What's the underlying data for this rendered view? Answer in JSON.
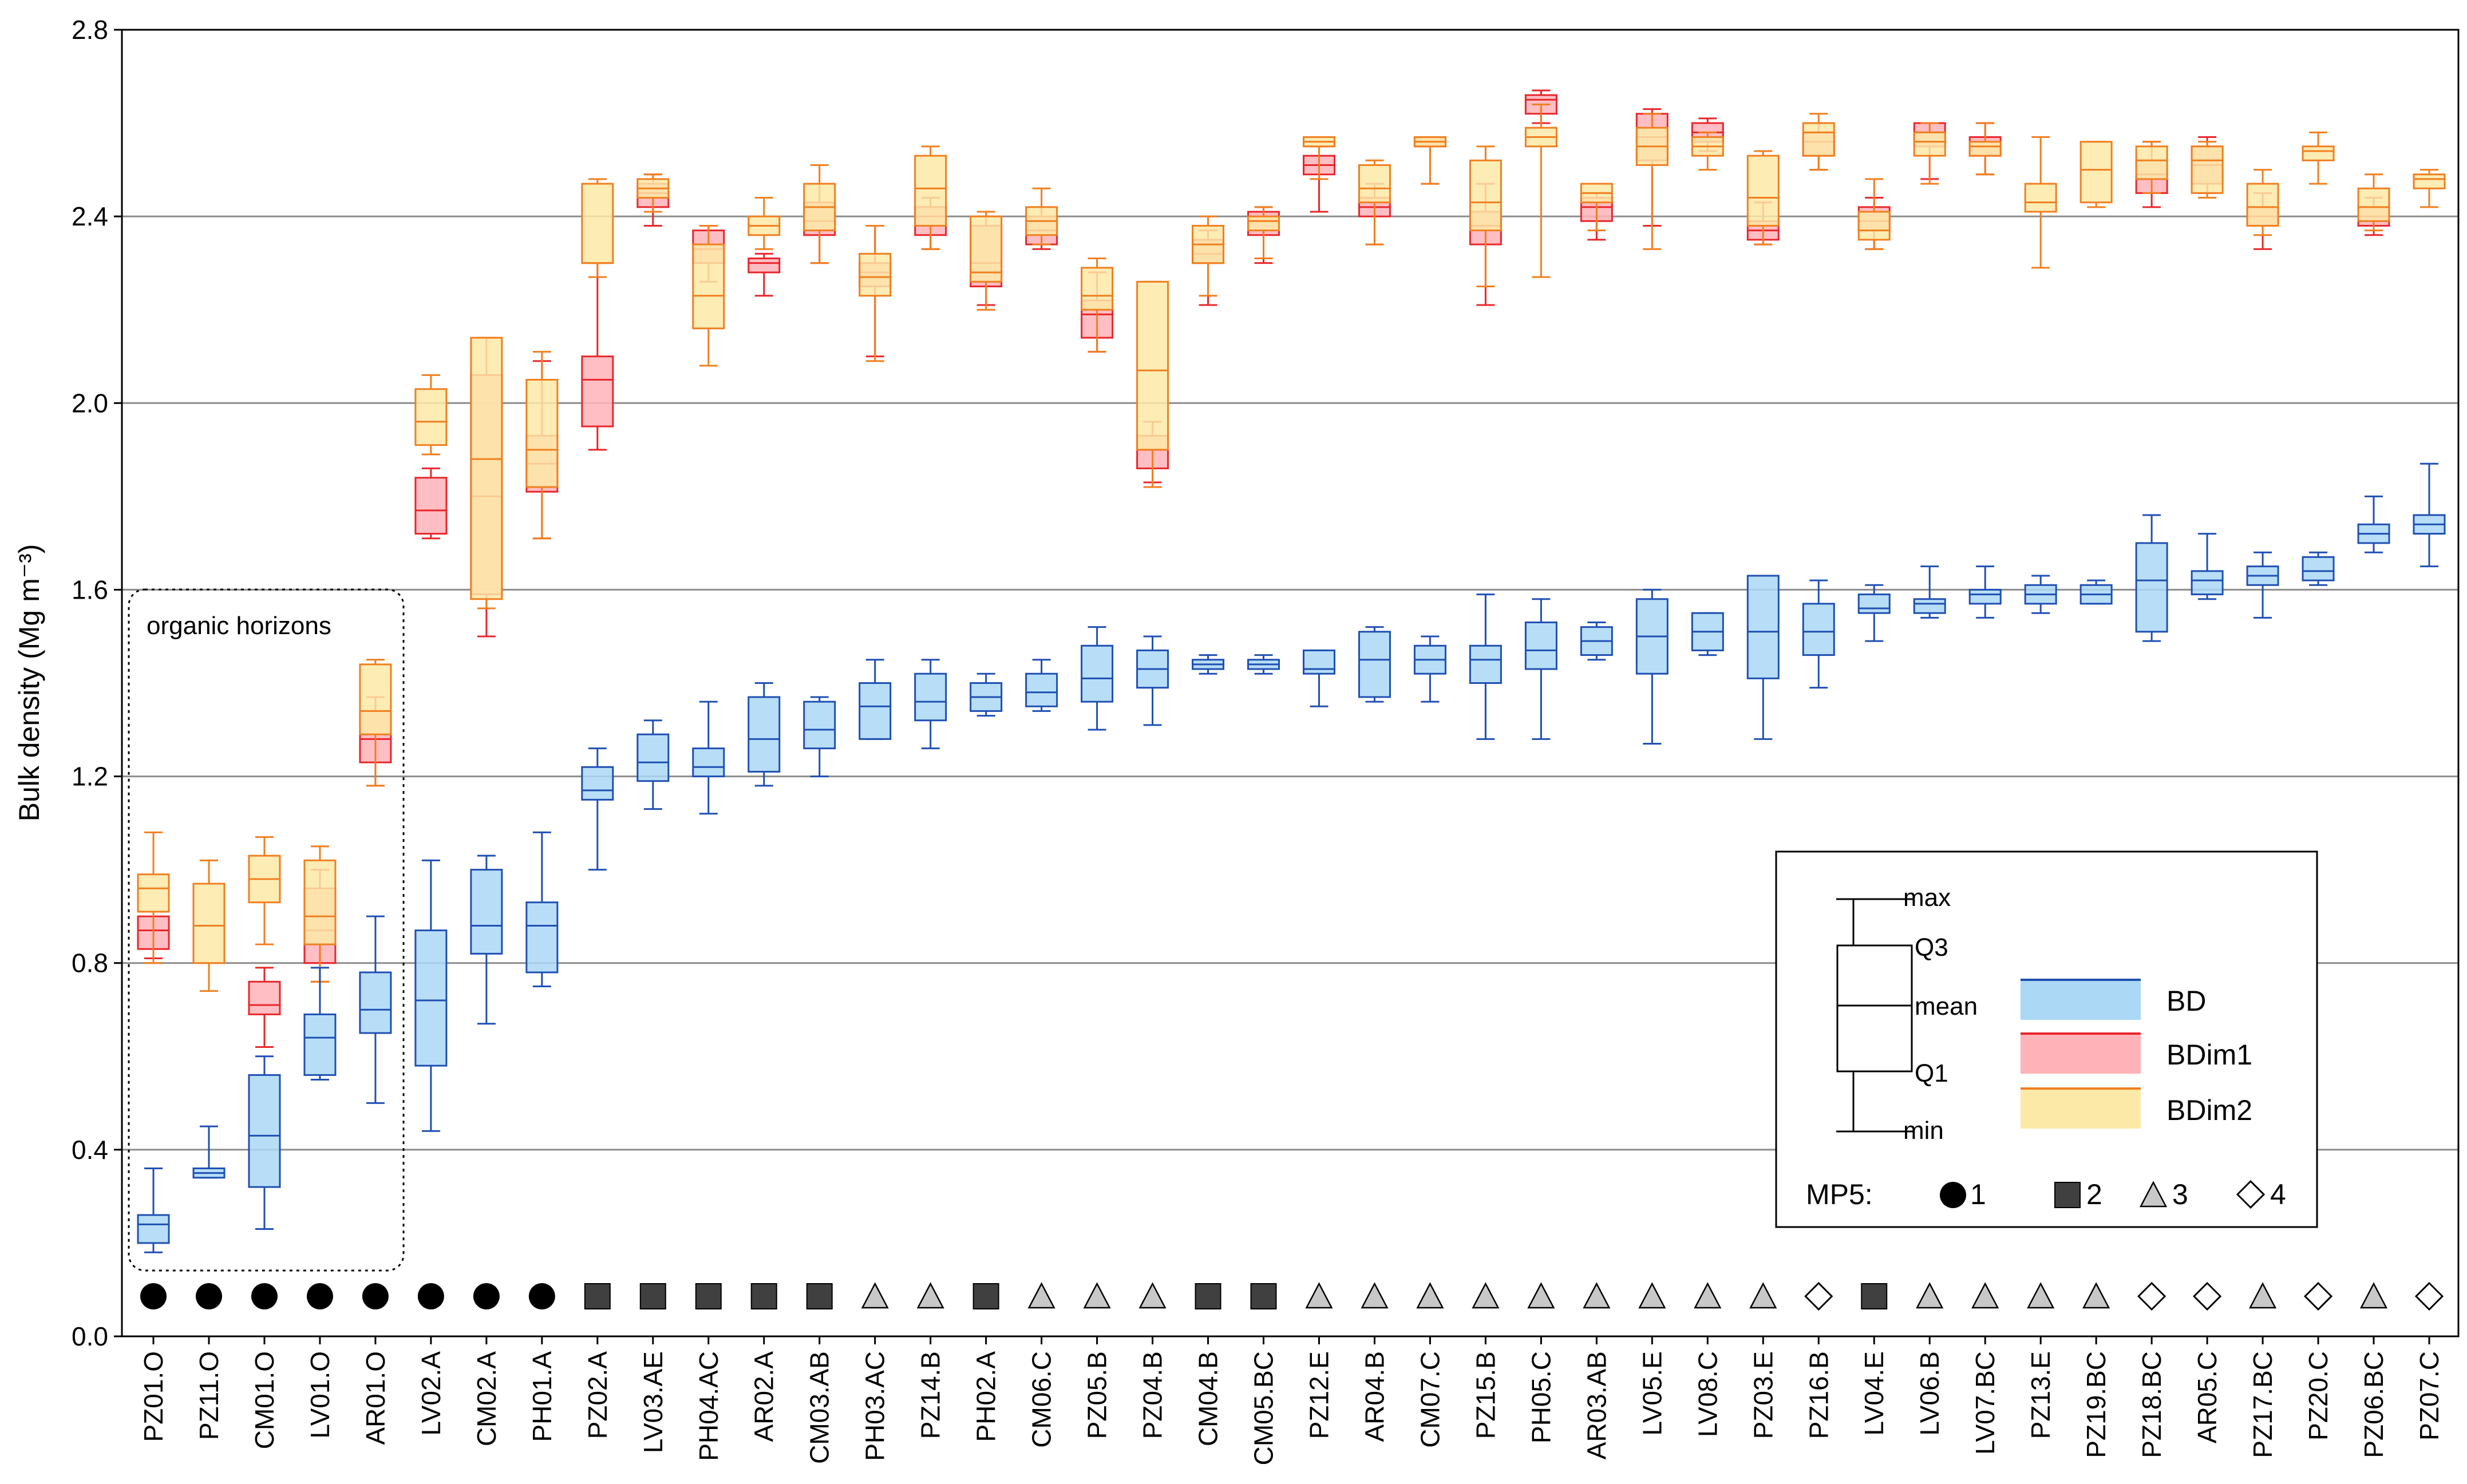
{
  "chart_data": {
    "type": "boxplot",
    "ylabel": "Bulk density (Mg m⁻³)",
    "ylim": [
      0,
      2.8
    ],
    "yticks": [
      0.0,
      0.4,
      0.8,
      1.2,
      1.6,
      2.0,
      2.4,
      2.8
    ],
    "ytick_labels": [
      "0.0",
      "0.4",
      "0.8",
      "1.2",
      "1.6",
      "2.0",
      "2.4",
      "2.8"
    ],
    "grid": true,
    "annotation": "organic horizons",
    "categories": [
      "PZ01.O",
      "PZ11.O",
      "CM01.O",
      "LV01.O",
      "AR01.O",
      "LV02.A",
      "CM02.A",
      "PH01.A",
      "PZ02.A",
      "LV03.AE",
      "PH04.AC",
      "AR02.A",
      "CM03.AB",
      "PH03.AC",
      "PZ14.B",
      "PH02.A",
      "CM06.C",
      "PZ05.B",
      "PZ04.B",
      "CM04.B",
      "CM05.BC",
      "PZ12.E",
      "AR04.B",
      "CM07.C",
      "PZ15.B",
      "PH05.C",
      "AR03.AB",
      "LV05.E",
      "LV08.C",
      "PZ03.E",
      "PZ16.B",
      "LV04.E",
      "LV06.B",
      "LV07.BC",
      "PZ13.E",
      "PZ19.BC",
      "PZ18.BC",
      "AR05.C",
      "PZ17.BC",
      "PZ20.C",
      "PZ06.BC",
      "PZ07.C"
    ],
    "mp5": [
      1,
      1,
      1,
      1,
      1,
      1,
      1,
      1,
      2,
      2,
      2,
      2,
      2,
      3,
      3,
      2,
      3,
      3,
      3,
      2,
      2,
      3,
      3,
      3,
      3,
      3,
      3,
      3,
      3,
      3,
      4,
      2,
      3,
      3,
      3,
      3,
      4,
      4,
      3,
      4,
      3,
      4
    ],
    "series": [
      {
        "name": "BD",
        "color": "#1f4fb3",
        "fill": "#aad8f5",
        "stats": [
          [
            0.18,
            0.2,
            0.24,
            0.26,
            0.36
          ],
          [
            0.34,
            0.34,
            0.35,
            0.36,
            0.45
          ],
          [
            0.23,
            0.32,
            0.43,
            0.56,
            0.6
          ],
          [
            0.55,
            0.56,
            0.64,
            0.69,
            0.79
          ],
          [
            0.5,
            0.65,
            0.7,
            0.78,
            0.9
          ],
          [
            0.44,
            0.58,
            0.72,
            0.87,
            1.02
          ],
          [
            0.67,
            0.82,
            0.88,
            1.0,
            1.03
          ],
          [
            0.75,
            0.78,
            0.88,
            0.93,
            1.08
          ],
          [
            1.0,
            1.15,
            1.17,
            1.22,
            1.26
          ],
          [
            1.13,
            1.19,
            1.23,
            1.29,
            1.32
          ],
          [
            1.12,
            1.2,
            1.22,
            1.26,
            1.36
          ],
          [
            1.18,
            1.21,
            1.28,
            1.37,
            1.4
          ],
          [
            1.2,
            1.26,
            1.3,
            1.36,
            1.37
          ],
          [
            1.28,
            1.28,
            1.35,
            1.4,
            1.45
          ],
          [
            1.26,
            1.32,
            1.36,
            1.42,
            1.45
          ],
          [
            1.33,
            1.34,
            1.37,
            1.4,
            1.42
          ],
          [
            1.34,
            1.35,
            1.38,
            1.42,
            1.45
          ],
          [
            1.3,
            1.36,
            1.41,
            1.48,
            1.52
          ],
          [
            1.31,
            1.39,
            1.43,
            1.47,
            1.5
          ],
          [
            1.42,
            1.43,
            1.44,
            1.45,
            1.46
          ],
          [
            1.42,
            1.43,
            1.44,
            1.45,
            1.46
          ],
          [
            1.35,
            1.42,
            1.43,
            1.47,
            1.47
          ],
          [
            1.36,
            1.37,
            1.45,
            1.51,
            1.52
          ],
          [
            1.36,
            1.42,
            1.45,
            1.48,
            1.5
          ],
          [
            1.28,
            1.4,
            1.45,
            1.48,
            1.59
          ],
          [
            1.28,
            1.43,
            1.47,
            1.53,
            1.58
          ],
          [
            1.45,
            1.46,
            1.49,
            1.52,
            1.53
          ],
          [
            1.27,
            1.42,
            1.5,
            1.58,
            1.6
          ],
          [
            1.46,
            1.47,
            1.51,
            1.55,
            1.55
          ],
          [
            1.28,
            1.41,
            1.51,
            1.63,
            1.63
          ],
          [
            1.39,
            1.46,
            1.51,
            1.57,
            1.62
          ],
          [
            1.49,
            1.55,
            1.56,
            1.59,
            1.61
          ],
          [
            1.54,
            1.55,
            1.57,
            1.58,
            1.65
          ],
          [
            1.54,
            1.57,
            1.59,
            1.6,
            1.65
          ],
          [
            1.55,
            1.57,
            1.59,
            1.61,
            1.63
          ],
          [
            1.57,
            1.57,
            1.59,
            1.61,
            1.62
          ],
          [
            1.49,
            1.51,
            1.62,
            1.7,
            1.76
          ],
          [
            1.58,
            1.59,
            1.62,
            1.64,
            1.72
          ],
          [
            1.54,
            1.61,
            1.63,
            1.65,
            1.68
          ],
          [
            1.61,
            1.62,
            1.64,
            1.67,
            1.68
          ],
          [
            1.68,
            1.7,
            1.72,
            1.74,
            1.8
          ],
          [
            1.65,
            1.72,
            1.74,
            1.76,
            1.87
          ]
        ]
      },
      {
        "name": "BDim1",
        "color": "#e8262b",
        "fill": "#ffb3b8",
        "stats": [
          [
            0.81,
            0.83,
            0.87,
            0.9,
            0.91
          ],
          null,
          [
            0.62,
            0.69,
            0.71,
            0.76,
            0.79
          ],
          [
            0.76,
            0.8,
            0.87,
            0.96,
            1.0
          ],
          [
            1.18,
            1.23,
            1.28,
            1.34,
            1.37
          ],
          [
            1.71,
            1.72,
            1.77,
            1.84,
            1.86
          ],
          [
            1.5,
            1.59,
            1.8,
            2.06,
            2.14
          ],
          [
            1.71,
            1.81,
            1.87,
            1.93,
            2.09
          ],
          [
            1.9,
            1.95,
            2.05,
            2.1,
            2.3
          ],
          [
            2.38,
            2.42,
            2.45,
            2.47,
            2.49
          ],
          [
            2.26,
            2.3,
            2.33,
            2.37,
            2.38
          ],
          [
            2.23,
            2.28,
            2.3,
            2.31,
            2.32
          ],
          [
            2.3,
            2.36,
            2.39,
            2.43,
            2.47
          ],
          [
            2.1,
            2.25,
            2.28,
            2.3,
            2.38
          ],
          [
            2.33,
            2.36,
            2.4,
            2.42,
            2.44
          ],
          [
            2.21,
            2.25,
            2.3,
            2.38,
            2.4
          ],
          [
            2.33,
            2.34,
            2.37,
            2.4,
            2.42
          ],
          [
            2.11,
            2.14,
            2.19,
            2.22,
            2.28
          ],
          [
            1.83,
            1.86,
            1.9,
            1.93,
            1.96
          ],
          [
            2.21,
            2.3,
            2.32,
            2.35,
            2.37
          ],
          [
            2.3,
            2.36,
            2.39,
            2.41,
            2.42
          ],
          [
            2.41,
            2.49,
            2.51,
            2.53,
            2.55
          ],
          [
            2.34,
            2.4,
            2.42,
            2.44,
            2.47
          ],
          [
            2.47,
            2.55,
            2.56,
            2.57,
            2.57
          ],
          [
            2.21,
            2.34,
            2.38,
            2.41,
            2.47
          ],
          [
            2.6,
            2.62,
            2.65,
            2.66,
            2.67
          ],
          [
            2.35,
            2.39,
            2.42,
            2.44,
            2.45
          ],
          [
            2.38,
            2.52,
            2.57,
            2.62,
            2.63
          ],
          [
            2.54,
            2.56,
            2.58,
            2.6,
            2.61
          ],
          [
            2.34,
            2.35,
            2.37,
            2.39,
            2.43
          ],
          [
            2.5,
            2.53,
            2.56,
            2.58,
            2.6
          ],
          [
            2.33,
            2.37,
            2.39,
            2.42,
            2.44
          ],
          [
            2.48,
            2.55,
            2.58,
            2.6,
            2.6
          ],
          [
            2.49,
            2.53,
            2.55,
            2.57,
            2.6
          ],
          null,
          null,
          [
            2.42,
            2.45,
            2.49,
            2.52,
            2.56
          ],
          [
            2.45,
            2.47,
            2.51,
            2.55,
            2.57
          ],
          [
            2.33,
            2.38,
            2.4,
            2.42,
            2.45
          ],
          null,
          [
            2.36,
            2.38,
            2.4,
            2.42,
            2.44
          ],
          null
        ]
      },
      {
        "name": "BDim2",
        "color": "#f07f1f",
        "fill": "#fde9a7",
        "stats": [
          [
            0.8,
            0.91,
            0.96,
            0.99,
            1.08
          ],
          [
            0.74,
            0.8,
            0.88,
            0.97,
            1.02
          ],
          [
            0.84,
            0.93,
            0.98,
            1.03,
            1.07
          ],
          [
            0.76,
            0.84,
            0.9,
            1.02,
            1.05
          ],
          [
            1.18,
            1.29,
            1.34,
            1.44,
            1.45
          ],
          [
            1.89,
            1.91,
            1.96,
            2.03,
            2.06
          ],
          [
            1.56,
            1.58,
            1.88,
            2.14,
            2.14
          ],
          [
            1.71,
            1.82,
            1.9,
            2.05,
            2.11
          ],
          [
            2.27,
            2.3,
            2.3,
            2.47,
            2.48
          ],
          [
            2.41,
            2.44,
            2.46,
            2.48,
            2.49
          ],
          [
            2.08,
            2.16,
            2.23,
            2.34,
            2.38
          ],
          [
            2.33,
            2.36,
            2.38,
            2.4,
            2.44
          ],
          [
            2.3,
            2.37,
            2.42,
            2.47,
            2.51
          ],
          [
            2.09,
            2.23,
            2.27,
            2.32,
            2.38
          ],
          [
            2.33,
            2.38,
            2.46,
            2.53,
            2.55
          ],
          [
            2.2,
            2.26,
            2.28,
            2.4,
            2.41
          ],
          [
            2.34,
            2.36,
            2.39,
            2.42,
            2.46
          ],
          [
            2.11,
            2.2,
            2.23,
            2.29,
            2.31
          ],
          [
            1.82,
            1.9,
            2.07,
            2.26,
            2.26
          ],
          [
            2.23,
            2.3,
            2.34,
            2.38,
            2.4
          ],
          [
            2.31,
            2.37,
            2.39,
            2.4,
            2.42
          ],
          [
            2.48,
            2.55,
            2.56,
            2.57,
            2.57
          ],
          [
            2.34,
            2.43,
            2.46,
            2.51,
            2.52
          ],
          [
            2.47,
            2.55,
            2.56,
            2.57,
            2.57
          ],
          [
            2.25,
            2.37,
            2.43,
            2.52,
            2.55
          ],
          [
            2.27,
            2.55,
            2.57,
            2.59,
            2.64
          ],
          [
            2.37,
            2.43,
            2.45,
            2.47,
            2.47
          ],
          [
            2.33,
            2.51,
            2.55,
            2.59,
            2.62
          ],
          [
            2.5,
            2.53,
            2.55,
            2.57,
            2.58
          ],
          [
            2.34,
            2.38,
            2.44,
            2.53,
            2.54
          ],
          [
            2.5,
            2.53,
            2.58,
            2.6,
            2.62
          ],
          [
            2.33,
            2.35,
            2.37,
            2.41,
            2.48
          ],
          [
            2.47,
            2.53,
            2.56,
            2.58,
            2.6
          ],
          [
            2.49,
            2.53,
            2.55,
            2.56,
            2.6
          ],
          [
            2.29,
            2.41,
            2.43,
            2.47,
            2.57
          ],
          [
            2.42,
            2.43,
            2.5,
            2.56,
            2.56
          ],
          [
            2.45,
            2.48,
            2.52,
            2.55,
            2.56
          ],
          [
            2.44,
            2.45,
            2.52,
            2.55,
            2.56
          ],
          [
            2.36,
            2.38,
            2.42,
            2.47,
            2.5
          ],
          [
            2.47,
            2.52,
            2.54,
            2.55,
            2.58
          ],
          [
            2.37,
            2.39,
            2.42,
            2.46,
            2.49
          ],
          [
            2.42,
            2.46,
            2.48,
            2.49,
            2.5
          ]
        ]
      }
    ],
    "legend": {
      "box_labels": {
        "max": "max",
        "q3": "Q3",
        "mean": "mean",
        "q1": "Q1",
        "min": "min"
      },
      "series_labels": [
        "BD",
        "BDim1",
        "BDim2"
      ],
      "mp5_label": "MP5:",
      "mp5_items": [
        "1",
        "2",
        "3",
        "4"
      ],
      "position": "bottom-right"
    }
  }
}
